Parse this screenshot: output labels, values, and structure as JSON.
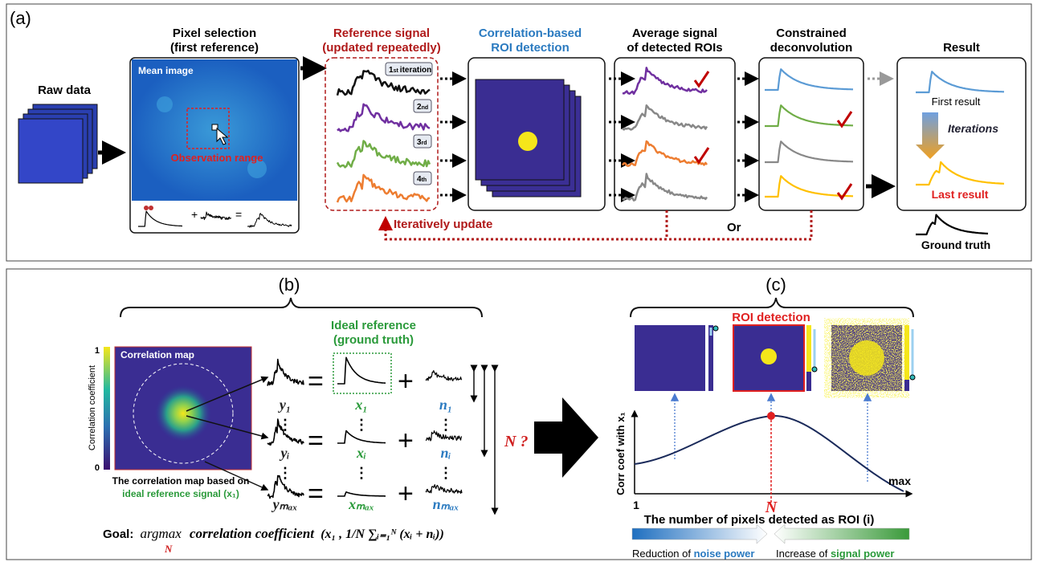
{
  "panel_a": {
    "label": "(a)",
    "raw_data": "Raw data",
    "pixel_selection": {
      "title": [
        "Pixel selection",
        "(first reference)"
      ],
      "image_label": "Mean image",
      "observation": "Observation range"
    },
    "reference": {
      "title": [
        "Reference signal",
        "(updated repeatedly)"
      ],
      "iterations": [
        [
          "1",
          "st",
          "iteration"
        ],
        [
          "2",
          "nd"
        ],
        [
          "3",
          "rd"
        ],
        [
          "4",
          "th"
        ]
      ]
    },
    "roi_detection": {
      "title": [
        "Correlation-based",
        "ROI detection"
      ]
    },
    "average": {
      "title": [
        "Average signal",
        "of detected ROIs"
      ]
    },
    "deconvolution": {
      "title": [
        "Constrained",
        "deconvolution"
      ]
    },
    "result": {
      "title": "Result",
      "first": "First result",
      "iterations": "Iterations",
      "last": "Last result",
      "ground_truth": "Ground truth"
    },
    "feedback": {
      "label": "Iteratively update",
      "or": "Or"
    }
  },
  "panel_b": {
    "label": "(b)",
    "map": {
      "title": "Correlation map",
      "scale_max": "1",
      "scale_min": "0",
      "scale_label": "Correlation coefficient",
      "caption": [
        "The correlation map based on",
        "ideal reference signal (x₁)"
      ]
    },
    "ideal_reference": [
      "Ideal reference",
      "(ground truth)"
    ],
    "equation": {
      "rows": [
        [
          "y₁",
          "x₁",
          "n₁"
        ],
        [
          "yᵢ",
          "xᵢ",
          "nᵢ"
        ],
        [
          "yₘₐₓ",
          "xₘₐₓ",
          "nₘₐₓ"
        ]
      ],
      "equals": "=",
      "plus": "+",
      "dots": "⋮",
      "count": "N ?"
    },
    "goal": {
      "label": "Goal:",
      "operator": "argmax",
      "subscript": "N",
      "function": "correlation coefficient",
      "arguments": "(x₁ , 1/N ∑ᵢ₌₁ᴺ (xᵢ + nᵢ))"
    }
  },
  "panel_c": {
    "label": "(c)",
    "title": "ROI detection",
    "y_label": "Corr coef with x₁",
    "x_start": "1",
    "x_peak": "N",
    "x_end": "max",
    "x_label": "The number of pixels detected as ROI (i)",
    "left_note": [
      "Reduction of ",
      "noise power"
    ],
    "right_note": [
      "Increase of ",
      "signal power"
    ]
  }
}
